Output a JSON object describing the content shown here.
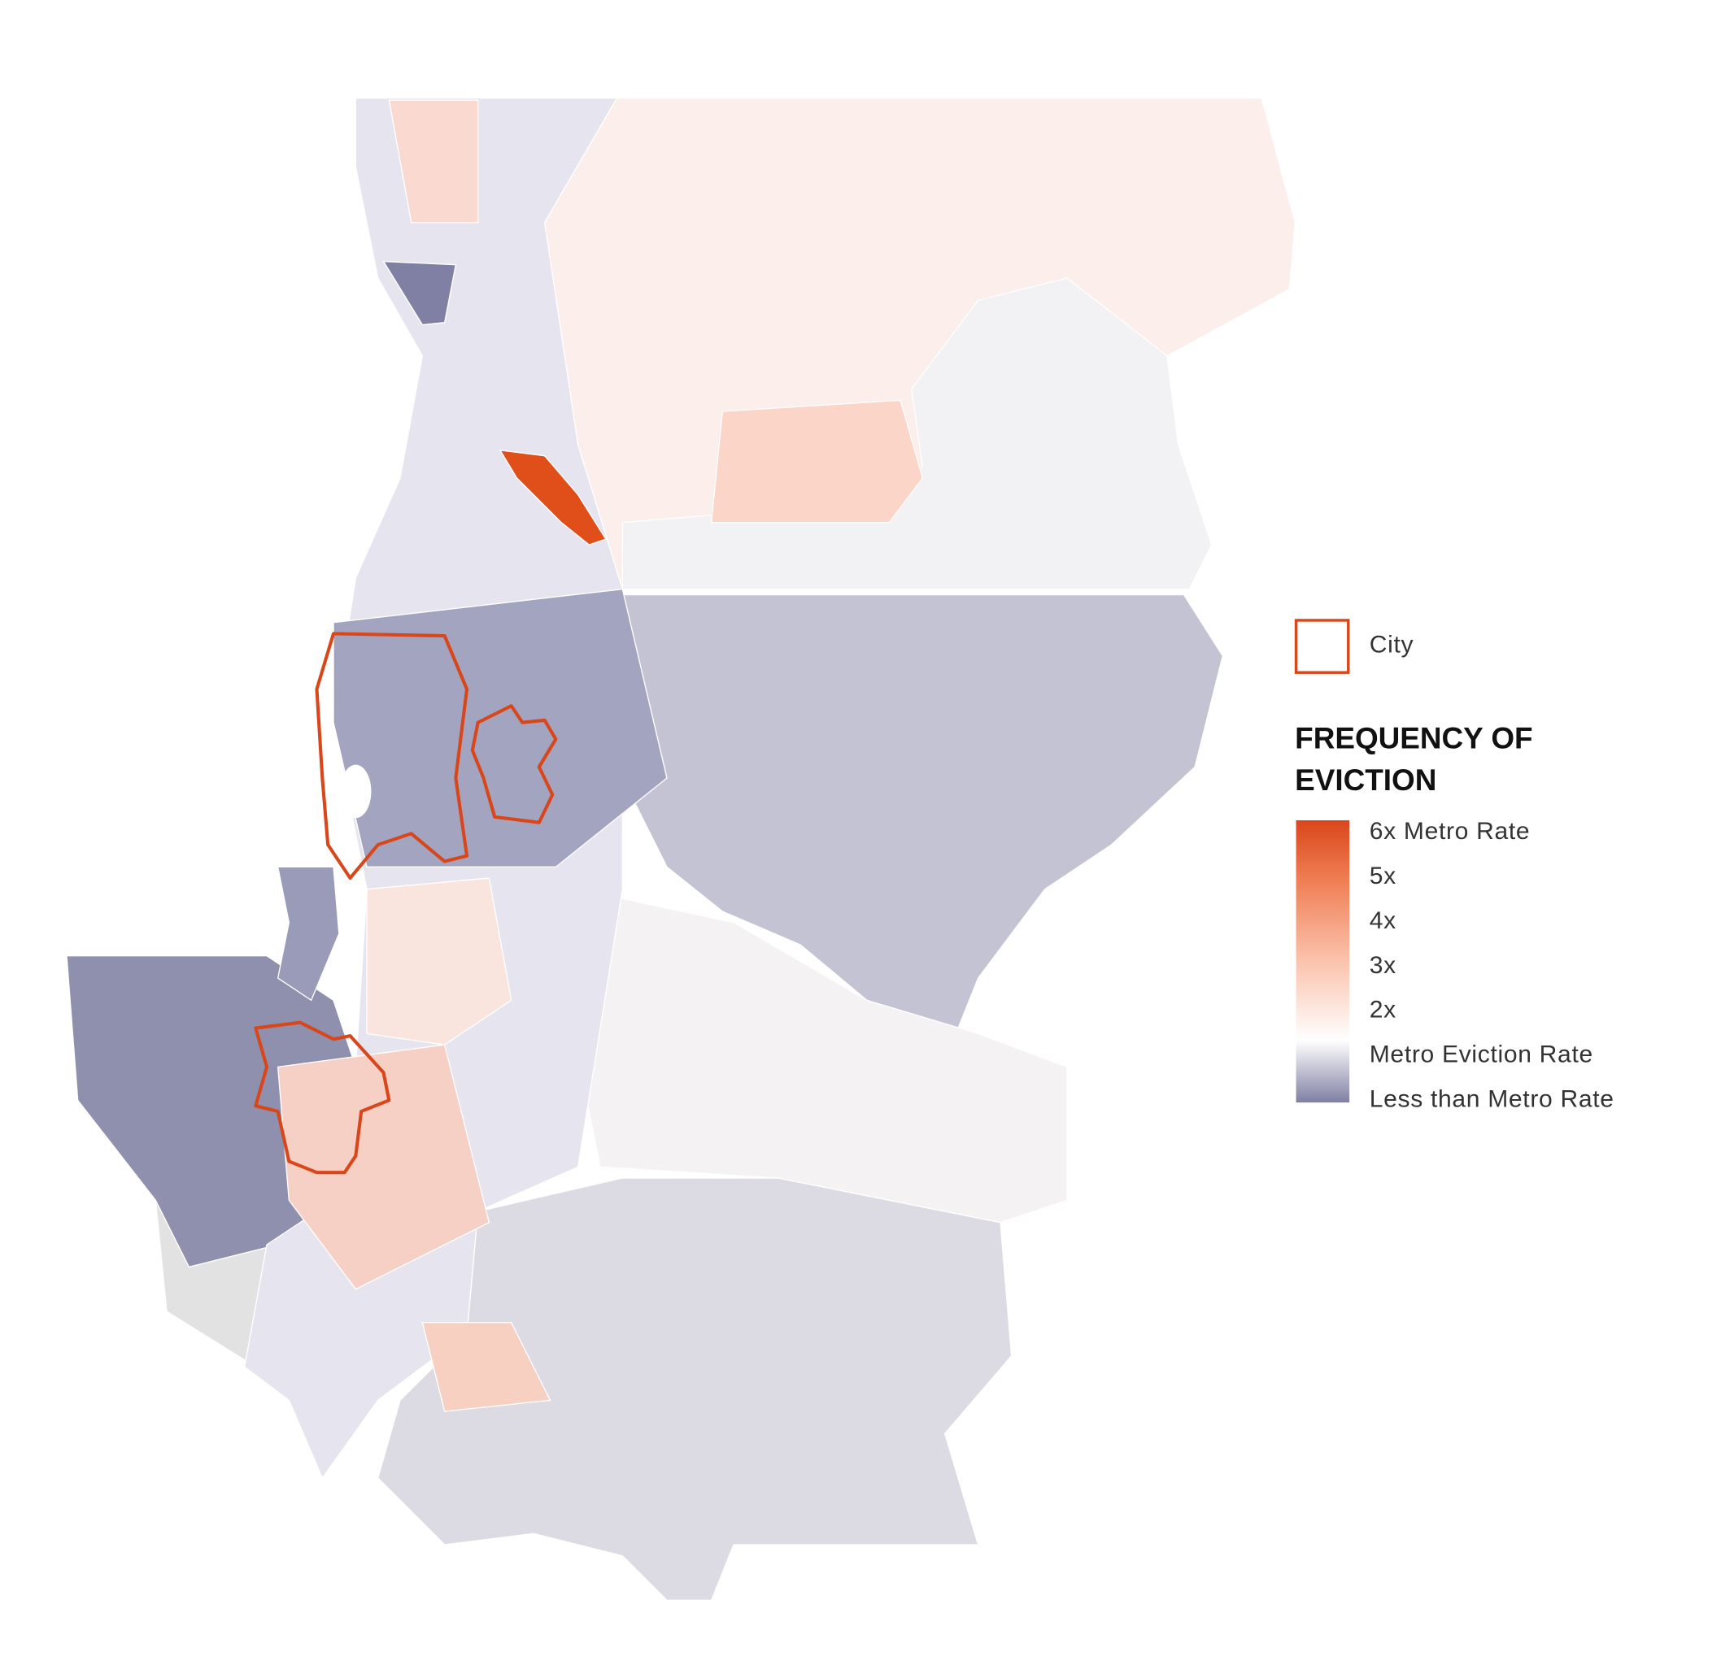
{
  "legend": {
    "city_label": "City",
    "title_lines": [
      "FREQUENCY OF",
      "EVICTION"
    ],
    "scale_labels": [
      "6x Metro Rate",
      "5x",
      "4x",
      "3x",
      "2x",
      "Metro Eviction Rate",
      "Less than Metro Rate"
    ]
  }
}
